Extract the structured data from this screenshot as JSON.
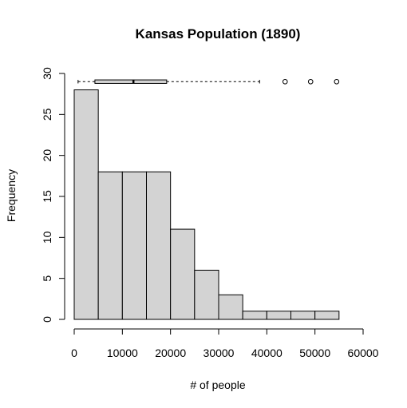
{
  "chart_data": {
    "type": "histogram",
    "title": "Kansas Population (1890)",
    "xlabel": "# of people",
    "ylabel": "Frequency",
    "xlim": [
      0,
      60000
    ],
    "ylim": [
      0,
      30
    ],
    "x_ticks": [
      0,
      10000,
      20000,
      30000,
      40000,
      50000,
      60000
    ],
    "y_ticks": [
      0,
      5,
      10,
      15,
      20,
      25,
      30
    ],
    "grid": false,
    "bins": [
      {
        "start": 0,
        "end": 5000,
        "count": 28
      },
      {
        "start": 5000,
        "end": 10000,
        "count": 18
      },
      {
        "start": 10000,
        "end": 15000,
        "count": 18
      },
      {
        "start": 15000,
        "end": 20000,
        "count": 18
      },
      {
        "start": 20000,
        "end": 25000,
        "count": 11
      },
      {
        "start": 25000,
        "end": 30000,
        "count": 6
      },
      {
        "start": 30000,
        "end": 35000,
        "count": 3
      },
      {
        "start": 35000,
        "end": 40000,
        "count": 1
      },
      {
        "start": 40000,
        "end": 45000,
        "count": 1
      },
      {
        "start": 45000,
        "end": 50000,
        "count": 1
      },
      {
        "start": 50000,
        "end": 55000,
        "count": 1
      }
    ],
    "boxplot": {
      "min": 800,
      "q1": 4300,
      "median": 12300,
      "q3": 19200,
      "whisker_high": 38500,
      "outliers": [
        43800,
        49100,
        54500
      ],
      "y_level": 29
    },
    "colors": {
      "bar_fill": "#d3d3d3",
      "bar_stroke": "#000000"
    }
  }
}
